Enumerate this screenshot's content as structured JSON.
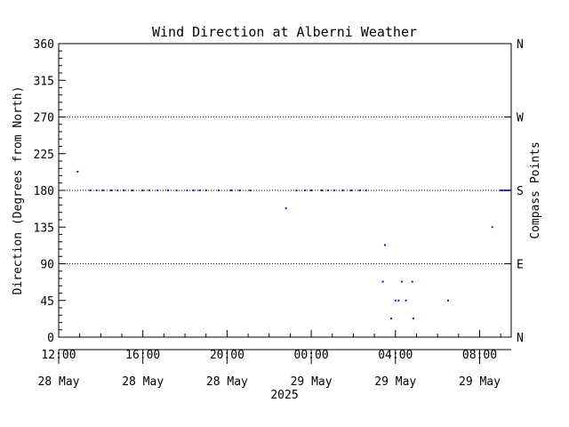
{
  "chart_data": {
    "type": "scatter",
    "title": "Wind Direction at Alberni Weather",
    "ylabel": "Direction (Degrees from North)",
    "y2label": "Compass Points",
    "xlabel": "2025",
    "ylim": [
      0,
      360
    ],
    "xlim_hours": [
      0,
      21.5
    ],
    "yticks": [
      0,
      45,
      90,
      135,
      180,
      225,
      270,
      315,
      360
    ],
    "compass_ticks": [
      {
        "value": 0,
        "label": "N"
      },
      {
        "value": 90,
        "label": "E"
      },
      {
        "value": 180,
        "label": "S"
      },
      {
        "value": 270,
        "label": "W"
      },
      {
        "value": 360,
        "label": "N"
      }
    ],
    "dotted_gridlines": [
      90,
      180,
      270
    ],
    "xticks": [
      {
        "hour": 0,
        "time": "12:00",
        "date": "28 May"
      },
      {
        "hour": 4,
        "time": "16:00",
        "date": "28 May"
      },
      {
        "hour": 8,
        "time": "20:00",
        "date": "28 May"
      },
      {
        "hour": 12,
        "time": "00:00",
        "date": "29 May"
      },
      {
        "hour": 16,
        "time": "04:00",
        "date": "29 May"
      },
      {
        "hour": 20,
        "time": "08:00",
        "date": "29 May"
      }
    ],
    "x_minor_ticks_per_major": 4,
    "point_color": "#4400cc",
    "points": [
      {
        "x": 0.9,
        "y": 203
      },
      {
        "x": 1.5,
        "y": 180
      },
      {
        "x": 1.8,
        "y": 180
      },
      {
        "x": 2.1,
        "y": 180
      },
      {
        "x": 2.5,
        "y": 180
      },
      {
        "x": 2.8,
        "y": 180
      },
      {
        "x": 3.1,
        "y": 180
      },
      {
        "x": 3.5,
        "y": 180
      },
      {
        "x": 4.0,
        "y": 180
      },
      {
        "x": 4.3,
        "y": 180
      },
      {
        "x": 4.7,
        "y": 180
      },
      {
        "x": 5.2,
        "y": 180
      },
      {
        "x": 5.6,
        "y": 180
      },
      {
        "x": 6.1,
        "y": 180
      },
      {
        "x": 6.4,
        "y": 180
      },
      {
        "x": 6.7,
        "y": 180
      },
      {
        "x": 7.0,
        "y": 180
      },
      {
        "x": 7.6,
        "y": 180
      },
      {
        "x": 8.2,
        "y": 180
      },
      {
        "x": 8.6,
        "y": 180
      },
      {
        "x": 9.1,
        "y": 180
      },
      {
        "x": 10.8,
        "y": 158
      },
      {
        "x": 11.3,
        "y": 180
      },
      {
        "x": 11.7,
        "y": 180
      },
      {
        "x": 12.0,
        "y": 180
      },
      {
        "x": 12.5,
        "y": 180
      },
      {
        "x": 12.8,
        "y": 180
      },
      {
        "x": 13.1,
        "y": 180
      },
      {
        "x": 13.5,
        "y": 180
      },
      {
        "x": 13.9,
        "y": 180
      },
      {
        "x": 14.3,
        "y": 180
      },
      {
        "x": 14.6,
        "y": 180
      },
      {
        "x": 15.4,
        "y": 68
      },
      {
        "x": 15.5,
        "y": 113
      },
      {
        "x": 15.8,
        "y": 23
      },
      {
        "x": 16.0,
        "y": 45
      },
      {
        "x": 16.15,
        "y": 45
      },
      {
        "x": 16.3,
        "y": 68
      },
      {
        "x": 16.5,
        "y": 45
      },
      {
        "x": 16.8,
        "y": 68
      },
      {
        "x": 16.85,
        "y": 23
      },
      {
        "x": 18.5,
        "y": 45
      },
      {
        "x": 20.6,
        "y": 135
      },
      {
        "x": 21.0,
        "y": 180
      },
      {
        "x": 21.1,
        "y": 180
      },
      {
        "x": 21.2,
        "y": 180
      },
      {
        "x": 21.3,
        "y": 180
      },
      {
        "x": 21.4,
        "y": 180
      }
    ]
  }
}
